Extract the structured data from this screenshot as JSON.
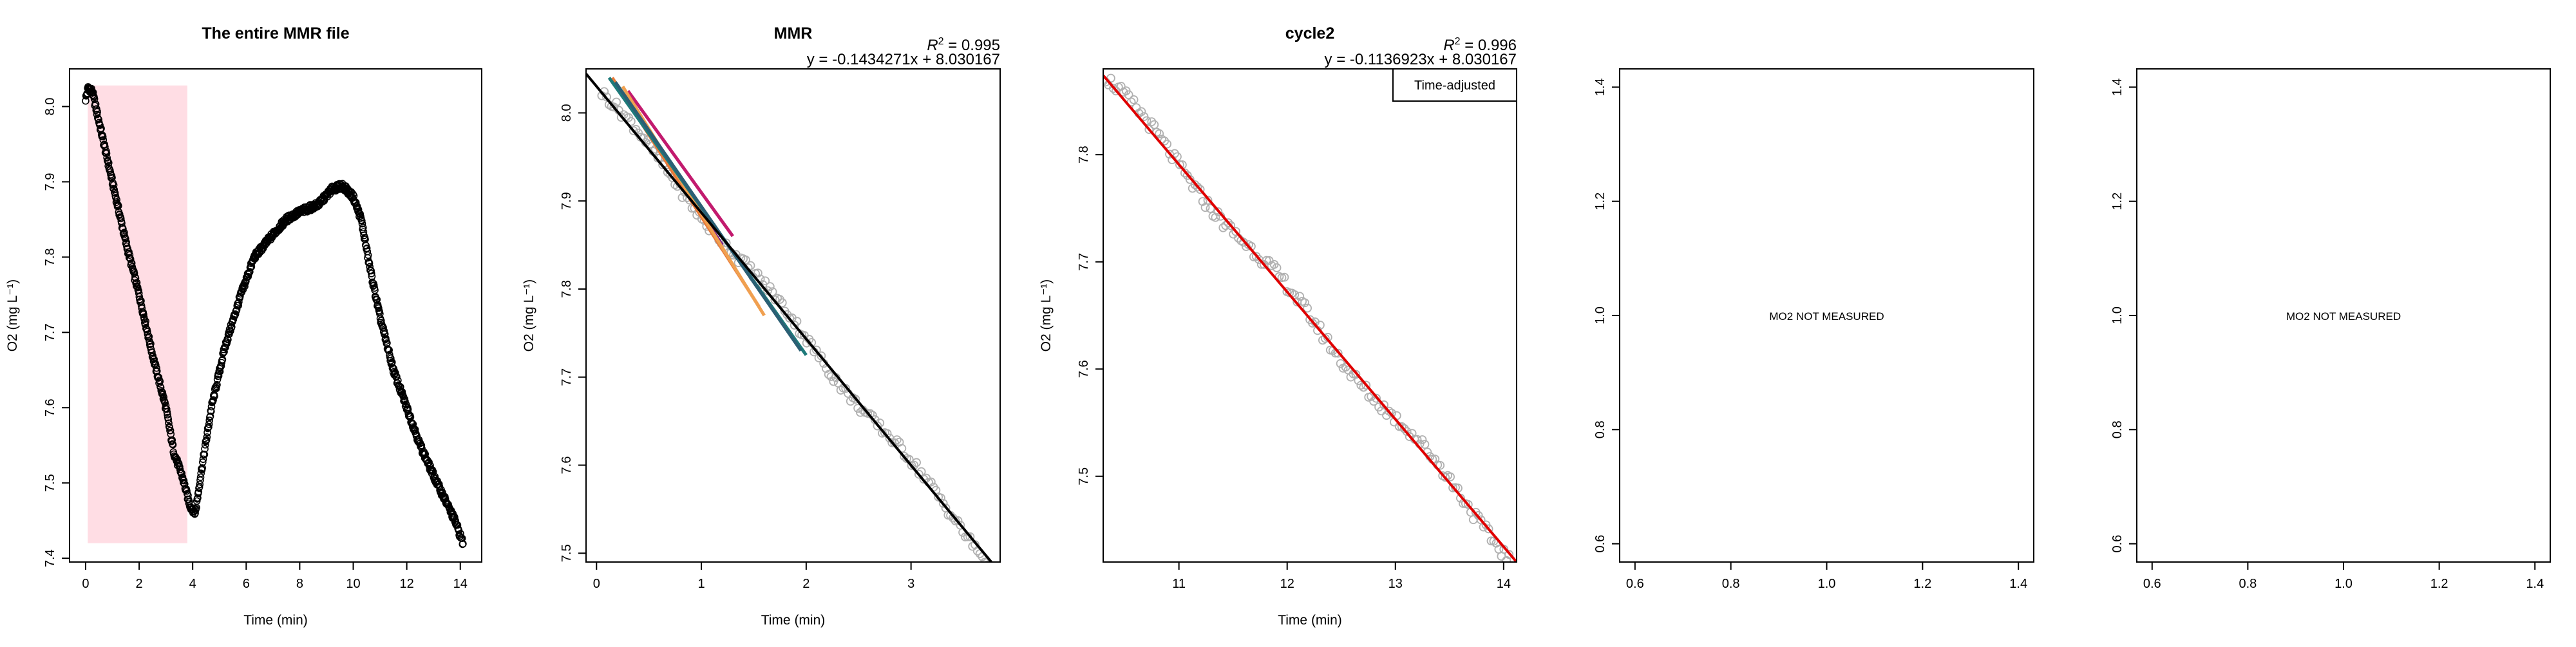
{
  "charts": [
    {
      "title": "The entire MMR file",
      "xlabel": "Time (min)",
      "ylabel": "O2 (mg L⁻¹)",
      "xticks": [
        0,
        2,
        4,
        6,
        8,
        10,
        12,
        14
      ],
      "yticks": [
        7.4,
        7.5,
        7.6,
        7.7,
        7.8,
        7.9,
        8.0
      ],
      "xlim": [
        -0.6,
        14.8
      ],
      "ylim": [
        7.395,
        8.05
      ],
      "highlight_window": {
        "x_start": 0.08,
        "x_end": 3.8,
        "y_start": 7.42,
        "y_end": 8.028,
        "color": "#ffdde4"
      },
      "series": [
        {
          "x": [
            0.0,
            0.1,
            0.25,
            0.5,
            1.0,
            1.5,
            2.0,
            2.5,
            3.0,
            3.3,
            3.6,
            3.9,
            4.1,
            4.3,
            4.7,
            5.2,
            5.8,
            6.3,
            7.0,
            7.5,
            8.0,
            8.7,
            9.2,
            9.6,
            10.0,
            10.3,
            10.6,
            11.0,
            11.5,
            12.0,
            12.5,
            13.0,
            13.4,
            13.8,
            14.1
          ],
          "y": [
            8.01,
            8.025,
            8.02,
            7.98,
            7.9,
            7.82,
            7.75,
            7.67,
            7.6,
            7.54,
            7.51,
            7.47,
            7.46,
            7.51,
            7.6,
            7.68,
            7.75,
            7.8,
            7.83,
            7.85,
            7.86,
            7.87,
            7.89,
            7.895,
            7.88,
            7.85,
            7.79,
            7.72,
            7.65,
            7.6,
            7.55,
            7.51,
            7.48,
            7.45,
            7.42
          ],
          "marker": "open-circle",
          "color": "#000000"
        }
      ]
    },
    {
      "title": "MMR",
      "xlabel": "Time (min)",
      "ylabel": "O2 (mg L⁻¹)",
      "r2_prefix": "R",
      "r2_exp": "2",
      "r2_value": " = 0.995",
      "equation": "y = -0.1434271x + 8.030167",
      "xticks": [
        0,
        1,
        2,
        3
      ],
      "yticks": [
        7.5,
        7.6,
        7.7,
        7.8,
        7.9,
        8.0
      ],
      "xlim": [
        -0.1,
        3.85
      ],
      "ylim": [
        7.49,
        8.05
      ],
      "points": {
        "x_start": 0.05,
        "x_end": 3.75,
        "color": "#b0b0b0"
      },
      "fit": {
        "slope": -0.1434271,
        "intercept": 8.030167,
        "color": "#000000"
      },
      "segments": [
        {
          "x": [
            0.2,
            1.2
          ],
          "y": [
            8.03,
            7.85
          ],
          "color": "#7a1f8a"
        },
        {
          "x": [
            0.15,
            1.55
          ],
          "y": [
            8.04,
            7.78
          ],
          "color": "#e87a3a"
        },
        {
          "x": [
            0.3,
            1.3
          ],
          "y": [
            8.025,
            7.86
          ],
          "color": "#c21a6e"
        },
        {
          "x": [
            0.25,
            1.6
          ],
          "y": [
            8.03,
            7.77
          ],
          "color": "#f0a050"
        },
        {
          "x": [
            0.12,
            2.0
          ],
          "y": [
            8.04,
            7.725
          ],
          "color": "#1e7a7a"
        },
        {
          "x": [
            0.18,
            1.95
          ],
          "y": [
            8.035,
            7.73
          ],
          "color": "#2b5f74"
        }
      ]
    },
    {
      "title": "cycle2",
      "xlabel": "Time (min)",
      "ylabel": "O2 (mg L⁻¹)",
      "r2_prefix": "R",
      "r2_exp": "2",
      "r2_value": " = 0.996",
      "equation": "y = -0.1136923x + 8.030167",
      "legend": "Time-adjusted",
      "xticks": [
        11,
        12,
        13,
        14
      ],
      "yticks": [
        7.5,
        7.6,
        7.7,
        7.8
      ],
      "xlim": [
        10.3,
        14.12
      ],
      "ylim": [
        7.42,
        7.88
      ],
      "points": {
        "x_start": 10.3,
        "x_end": 14.05,
        "color": "#b0b0b0"
      },
      "fit": {
        "x": [
          10.3,
          14.12
        ],
        "y": [
          7.874,
          7.42
        ],
        "color": "#e00000"
      }
    },
    {
      "title": "",
      "xlabel": "",
      "ylabel": "",
      "message": "MO2 NOT MEASURED",
      "xticks": [
        0.6,
        0.8,
        1.0,
        1.2,
        1.4
      ],
      "yticks": [
        0.6,
        0.8,
        1.0,
        1.2,
        1.4
      ],
      "xlim": [
        0.568,
        1.432
      ],
      "ylim": [
        0.568,
        1.432
      ]
    },
    {
      "title": "",
      "xlabel": "",
      "ylabel": "",
      "message": "MO2 NOT MEASURED",
      "xticks": [
        0.6,
        0.8,
        1.0,
        1.2,
        1.4
      ],
      "yticks": [
        0.6,
        0.8,
        1.0,
        1.2,
        1.4
      ],
      "xlim": [
        0.568,
        1.432
      ],
      "ylim": [
        0.568,
        1.432
      ]
    }
  ]
}
